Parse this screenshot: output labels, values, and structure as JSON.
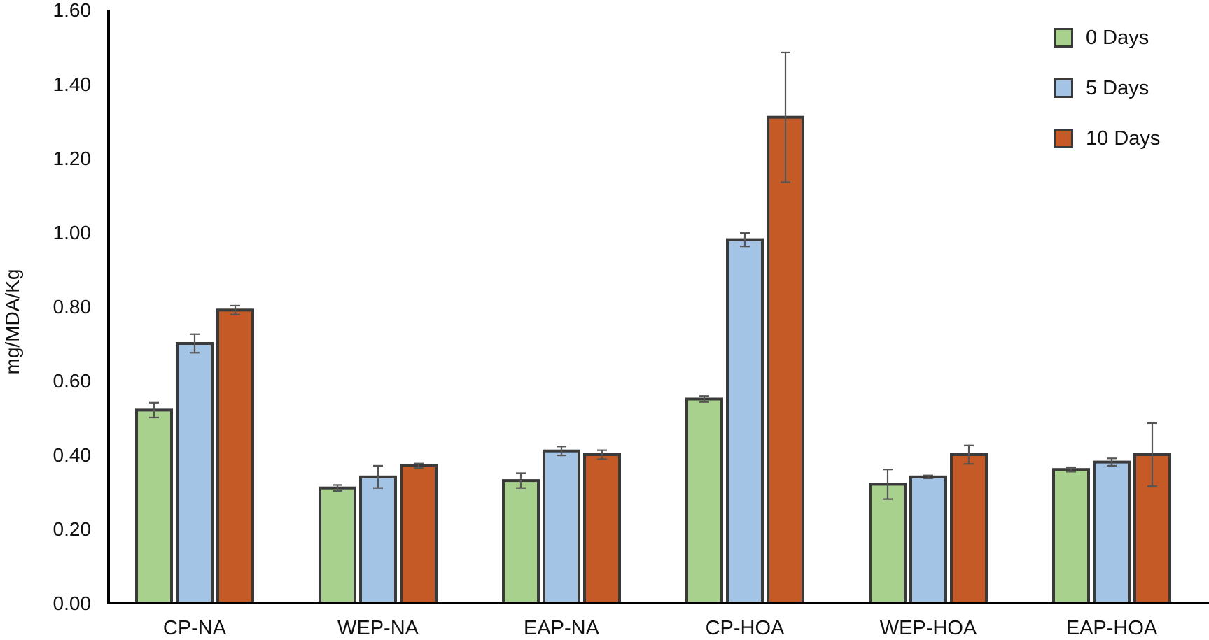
{
  "chart_data": {
    "type": "bar",
    "ylabel": "mg/MDA/Kg",
    "ylim": [
      0,
      1.6
    ],
    "yticks": [
      "0.00",
      "0.20",
      "0.40",
      "0.60",
      "0.80",
      "1.00",
      "1.20",
      "1.40",
      "1.60"
    ],
    "categories": [
      "CP-NA",
      "WEP-NA",
      "EAP-NA",
      "CP-HOA",
      "WEP-HOA",
      "EAP-HOA"
    ],
    "series": [
      {
        "name": "0 Days",
        "color": "#a8d18d",
        "values": [
          0.52,
          0.31,
          0.33,
          0.55,
          0.32,
          0.36
        ],
        "errors": [
          0.02,
          0.008,
          0.02,
          0.008,
          0.04,
          0.006
        ]
      },
      {
        "name": "5 Days",
        "color": "#a3c4e4",
        "values": [
          0.7,
          0.34,
          0.41,
          0.98,
          0.34,
          0.38
        ],
        "errors": [
          0.025,
          0.03,
          0.012,
          0.018,
          0.004,
          0.01
        ]
      },
      {
        "name": "10 Days",
        "color": "#c55a27",
        "values": [
          0.79,
          0.37,
          0.4,
          1.31,
          0.4,
          0.4
        ],
        "errors": [
          0.012,
          0.006,
          0.012,
          0.175,
          0.025,
          0.085
        ]
      }
    ],
    "legend_position": "top-right",
    "grid": false,
    "error_bars": true
  }
}
